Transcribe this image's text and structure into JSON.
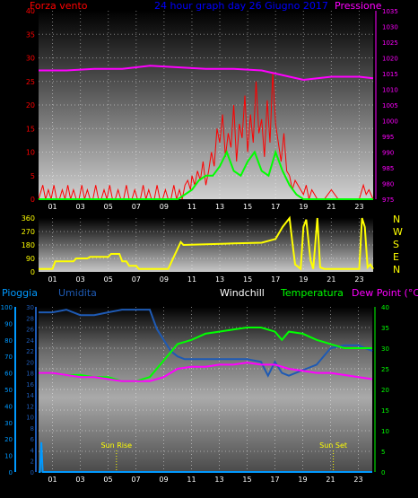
{
  "top_panel": {
    "title": "24 hour graph day   26 Giugno 2017",
    "left_label": "Forza vento",
    "right_label": "Pressione",
    "colors": {
      "left_label": "#ff0000",
      "title": "#0000ff",
      "right_label": "#ff00ff",
      "left_ticks": "#ff0000",
      "right_ticks": "#ff00ff"
    }
  },
  "middle_panel": {
    "dir_letters": [
      "N",
      "W",
      "S",
      "E",
      "N"
    ],
    "colors": {
      "ticks": "#ffff00",
      "letters": "#ffff00"
    }
  },
  "bottom_panel": {
    "labels": {
      "pioggia": "Pioggia",
      "umidita": "Umidita",
      "windchill": "Windchill",
      "temperatura": "Temperatura",
      "dewpoint": "Dew Point (°C)"
    },
    "annotations": {
      "sunrise": "Sun Rise",
      "sunset": "Sun Set"
    },
    "colors": {
      "pioggia": "#0099ff",
      "umidita": "#1e5ab4",
      "windchill": "#ffffff",
      "temperatura": "#00ff00",
      "dewpoint": "#ff00ff",
      "right_ticks": "#00ff00"
    }
  },
  "chart_data": [
    {
      "type": "line",
      "name": "wind-pressure",
      "x_ticks": [
        "01",
        "03",
        "05",
        "07",
        "09",
        "11",
        "13",
        "15",
        "17",
        "19",
        "21",
        "23"
      ],
      "xlim": [
        0,
        24
      ],
      "y_left": {
        "ticks": [
          0,
          5,
          10,
          15,
          20,
          25,
          30,
          35,
          40
        ],
        "ylim": [
          0,
          40
        ]
      },
      "y_right": {
        "ticks": [
          975,
          980,
          985,
          990,
          995,
          1000,
          1005,
          1010,
          1015,
          1020,
          1025,
          1030,
          1035
        ],
        "ylim": [
          975,
          1035
        ]
      },
      "grid": true,
      "series": [
        {
          "axis": "left",
          "color": "#ff0000",
          "width": 1,
          "x": [
            0,
            0.3,
            0.5,
            0.7,
            0.9,
            1.1,
            1.3,
            1.5,
            1.7,
            1.9,
            2.1,
            2.3,
            2.5,
            2.7,
            2.9,
            3.1,
            3.3,
            3.5,
            3.7,
            3.9,
            4.1,
            4.3,
            4.5,
            4.7,
            4.9,
            5.1,
            5.3,
            5.5,
            5.7,
            5.9,
            6.1,
            6.3,
            6.5,
            6.7,
            6.9,
            7.1,
            7.3,
            7.5,
            7.7,
            7.9,
            8.1,
            8.3,
            8.5,
            8.7,
            8.9,
            9.1,
            9.3,
            9.5,
            9.7,
            9.9,
            10.1,
            10.3,
            10.5,
            10.7,
            10.9,
            11.0,
            11.2,
            11.4,
            11.6,
            11.8,
            12.0,
            12.2,
            12.4,
            12.6,
            12.8,
            13.0,
            13.2,
            13.4,
            13.6,
            13.8,
            14.0,
            14.2,
            14.4,
            14.6,
            14.8,
            15.0,
            15.2,
            15.4,
            15.6,
            15.8,
            16.0,
            16.2,
            16.4,
            16.6,
            16.8,
            17.0,
            17.2,
            17.4,
            17.6,
            17.8,
            18.0,
            18.2,
            18.4,
            18.6,
            18.8,
            19.0,
            19.2,
            19.4,
            19.6,
            19.8,
            20.0,
            20.5,
            21.0,
            21.5,
            22.0,
            22.5,
            23.0,
            23.3,
            23.5,
            23.7,
            24.0
          ],
          "y": [
            0,
            3,
            0,
            2,
            0,
            3,
            0,
            0,
            2,
            0,
            3,
            0,
            2,
            0,
            0,
            3,
            0,
            2,
            0,
            0,
            3,
            0,
            0,
            2,
            0,
            3,
            0,
            0,
            2,
            0,
            0,
            3,
            0,
            0,
            2,
            0,
            0,
            3,
            0,
            2,
            0,
            0,
            3,
            0,
            0,
            2,
            0,
            0,
            3,
            0,
            2,
            0,
            3,
            4,
            2,
            5,
            3,
            6,
            4,
            8,
            3,
            6,
            10,
            7,
            15,
            12,
            18,
            9,
            14,
            11,
            20,
            8,
            16,
            13,
            22,
            10,
            18,
            12,
            25,
            14,
            17,
            9,
            21,
            12,
            27,
            16,
            12,
            8,
            14,
            6,
            5,
            2,
            4,
            3,
            2,
            1,
            3,
            0,
            2,
            1,
            0,
            0,
            2,
            0,
            0,
            0,
            0,
            3,
            1,
            2,
            0
          ]
        },
        {
          "axis": "left",
          "color": "#00ff00",
          "width": 2,
          "x": [
            0,
            10.0,
            11.0,
            11.5,
            12.0,
            12.5,
            13.0,
            13.5,
            14.0,
            14.5,
            15.0,
            15.5,
            16.0,
            16.5,
            17.0,
            17.5,
            18.0,
            18.5,
            19.0,
            24.0
          ],
          "y": [
            0,
            0,
            2,
            4,
            5,
            5,
            7,
            10,
            6,
            5,
            8,
            10,
            6,
            5,
            10,
            6,
            3,
            1,
            0,
            0
          ]
        },
        {
          "axis": "right",
          "color": "#ff00ff",
          "width": 2,
          "x": [
            0,
            2,
            4,
            6,
            8,
            10,
            12,
            14,
            16,
            17,
            18,
            19,
            20,
            21,
            22,
            23,
            24
          ],
          "y": [
            1016,
            1016,
            1016.5,
            1016.5,
            1017.5,
            1017,
            1016.5,
            1016.5,
            1016,
            1015,
            1014,
            1013,
            1013.5,
            1014,
            1014,
            1014,
            1013.5
          ]
        }
      ]
    },
    {
      "type": "line",
      "name": "wind-direction",
      "x_ticks": [
        "01",
        "03",
        "05",
        "07",
        "09",
        "11",
        "13",
        "15",
        "17",
        "19",
        "21",
        "23"
      ],
      "xlim": [
        0,
        24
      ],
      "y": {
        "ticks": [
          0,
          90,
          180,
          270,
          360
        ],
        "ylim": [
          0,
          360
        ]
      },
      "grid": true,
      "series": [
        {
          "color": "#ffff00",
          "width": 2,
          "x": [
            0,
            1.0,
            1.2,
            2.5,
            2.7,
            3.5,
            3.7,
            5.0,
            5.2,
            5.8,
            6.0,
            6.3,
            6.5,
            7.0,
            7.2,
            9.0,
            9.2,
            9.3,
            10.2,
            10.4,
            12.0,
            14.0,
            16.0,
            17.0,
            17.5,
            18.0,
            18.2,
            18.4,
            18.8,
            19.0,
            19.2,
            19.5,
            19.7,
            20.0,
            20.2,
            20.5,
            20.7,
            21.0,
            22.0,
            23.0,
            23.2,
            23.4,
            23.6,
            23.8,
            24.0
          ],
          "y": [
            20,
            20,
            70,
            70,
            90,
            90,
            100,
            100,
            120,
            120,
            70,
            70,
            40,
            40,
            20,
            20,
            20,
            20,
            200,
            180,
            185,
            190,
            195,
            220,
            300,
            360,
            200,
            50,
            20,
            300,
            350,
            80,
            20,
            360,
            30,
            20,
            20,
            20,
            20,
            20,
            360,
            300,
            30,
            50,
            20
          ]
        }
      ]
    },
    {
      "type": "line",
      "name": "temperature-humidity-rain",
      "x_ticks": [
        "01",
        "03",
        "05",
        "07",
        "09",
        "11",
        "13",
        "15",
        "17",
        "19",
        "21",
        "23"
      ],
      "xlim": [
        0,
        24
      ],
      "y_rain": {
        "ticks": [
          0,
          10,
          20,
          30,
          40,
          50,
          60,
          70,
          80,
          90,
          100
        ],
        "ylim": [
          0,
          100
        ]
      },
      "y_humidity": {
        "ticks": [
          0,
          2,
          4,
          6,
          8,
          10,
          12,
          14,
          16,
          18,
          20,
          22,
          24,
          26,
          28,
          30
        ],
        "ylim": [
          0,
          30
        ]
      },
      "y_temperature": {
        "ticks": [
          0,
          5,
          10,
          15,
          20,
          25,
          30,
          35,
          40
        ],
        "ylim": [
          0,
          40
        ]
      },
      "grid": true,
      "sun_rise_x": 5.6,
      "sun_set_x": 21.2,
      "series": [
        {
          "axis": "humidity",
          "color": "#1e5ab4",
          "width": 2,
          "x": [
            0,
            1,
            2,
            3,
            4,
            5,
            6,
            7,
            8,
            8.5,
            9,
            9.5,
            10,
            10.5,
            11,
            12,
            13,
            14,
            15,
            16,
            16.5,
            17,
            17.5,
            18,
            19,
            20,
            21,
            22,
            23,
            24
          ],
          "y": [
            29,
            29,
            29.5,
            28.5,
            28.5,
            29,
            29.5,
            29.5,
            29.5,
            26,
            24,
            22,
            21,
            20.5,
            20.5,
            20.5,
            20.5,
            20.5,
            20.5,
            20,
            17.5,
            20,
            18,
            17.5,
            18.5,
            19.5,
            22.5,
            23,
            23,
            22
          ]
        },
        {
          "axis": "temperature",
          "color": "#00ff00",
          "width": 2,
          "x": [
            0,
            1,
            2,
            3,
            4,
            5,
            6,
            7,
            8,
            9,
            10,
            11,
            12,
            13,
            14,
            15,
            16,
            17,
            17.5,
            18,
            19,
            20,
            21,
            22,
            23,
            24
          ],
          "y": [
            24,
            24,
            23.5,
            23.5,
            23,
            23,
            22,
            22,
            23,
            27,
            31,
            32,
            33.5,
            34,
            34.5,
            35,
            35,
            34,
            32,
            34,
            33.5,
            32,
            31,
            30,
            30,
            30
          ]
        },
        {
          "axis": "temperature",
          "color": "#ff00ff",
          "width": 2,
          "x": [
            0,
            1,
            2,
            3,
            4,
            5,
            6,
            7,
            8,
            9,
            10,
            11,
            12,
            13,
            14,
            15,
            16,
            17,
            18,
            19,
            20,
            21,
            22,
            23,
            24
          ],
          "y": [
            24,
            24,
            23.5,
            23,
            23,
            22.5,
            22,
            22,
            22,
            23,
            25,
            25.5,
            25.5,
            26,
            26,
            26.5,
            26,
            26,
            25,
            24.5,
            24,
            24,
            23.5,
            23,
            22.5
          ]
        },
        {
          "axis": "rain",
          "color": "#0099ff",
          "width": 2,
          "x": [
            0,
            0.1,
            0.2,
            0.3,
            24
          ],
          "y": [
            0,
            0,
            18,
            0,
            0
          ]
        }
      ]
    }
  ]
}
